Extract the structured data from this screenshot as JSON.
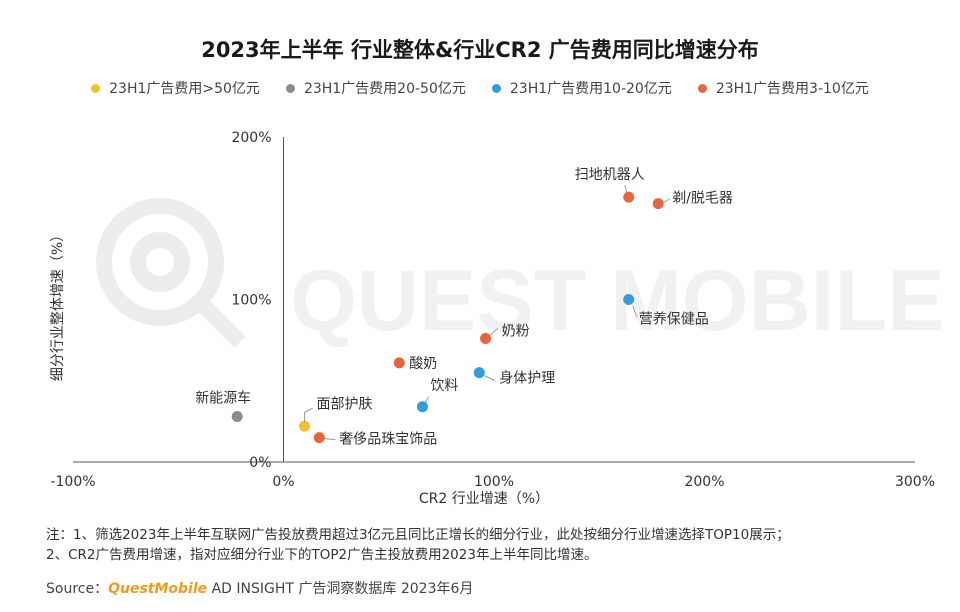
{
  "title": "2023年上半年 行业整体&行业CR2 广告费用同比增速分布",
  "legend": [
    {
      "label": "23H1广告费用>50亿元",
      "color": "#f2c12e"
    },
    {
      "label": "23H1广告费用20-50亿元",
      "color": "#8c8c8c"
    },
    {
      "label": "23H1广告费用10-20亿元",
      "color": "#2e9fd8"
    },
    {
      "label": "23H1广告费用3-10亿元",
      "color": "#e8643c"
    }
  ],
  "watermark": {
    "text": "QUEST MOBILE"
  },
  "notes": {
    "line1": "注：1、筛选2023年上半年互联网广告投放费用超过3亿元且同比正增长的细分行业，此处按细分行业增速选择TOP10展示；",
    "line2": "2、CR2广告费用增速，指对应细分行业下的TOP2广告主投放费用2023年上半年同比增速。"
  },
  "source": {
    "prefix": "Source：",
    "brand": "QuestMobile",
    "rest": " AD INSIGHT 广告洞察数据库 2023年6月"
  },
  "chart_data": {
    "type": "scatter",
    "xlabel": "CR2 行业增速（%）",
    "ylabel": "细分行业整体增速（%）",
    "xlim": [
      -100,
      300
    ],
    "ylim": [
      0,
      200
    ],
    "x_ticks": [
      {
        "value": -100,
        "label": "-100%"
      },
      {
        "value": 0,
        "label": "0%"
      },
      {
        "value": 100,
        "label": "100%"
      },
      {
        "value": 200,
        "label": "200%"
      },
      {
        "value": 300,
        "label": "300%"
      }
    ],
    "y_ticks": [
      {
        "value": 0,
        "label": "0%"
      },
      {
        "value": 100,
        "label": "100%"
      },
      {
        "value": 200,
        "label": "200%"
      }
    ],
    "points": [
      {
        "label": "面部护肤",
        "x": 10,
        "y": 22,
        "group": 0,
        "leader": true
      },
      {
        "label": "新能源车",
        "x": -22,
        "y": 28,
        "group": 1,
        "leader": false
      },
      {
        "label": "营养保健品",
        "x": 164,
        "y": 100,
        "group": 2,
        "leader": true
      },
      {
        "label": "身体护理",
        "x": 93,
        "y": 55,
        "group": 2,
        "leader": true
      },
      {
        "label": "饮料",
        "x": 66,
        "y": 34,
        "group": 2,
        "leader": true
      },
      {
        "label": "扫地机器人",
        "x": 164,
        "y": 163,
        "group": 3,
        "leader": true
      },
      {
        "label": "剃/脱毛器",
        "x": 178,
        "y": 159,
        "group": 3,
        "leader": true
      },
      {
        "label": "奶粉",
        "x": 96,
        "y": 76,
        "group": 3,
        "leader": true
      },
      {
        "label": "酸奶",
        "x": 55,
        "y": 61,
        "group": 3,
        "leader": false
      },
      {
        "label": "奢侈品珠宝饰品",
        "x": 17,
        "y": 15,
        "group": 3,
        "leader": true
      }
    ]
  }
}
